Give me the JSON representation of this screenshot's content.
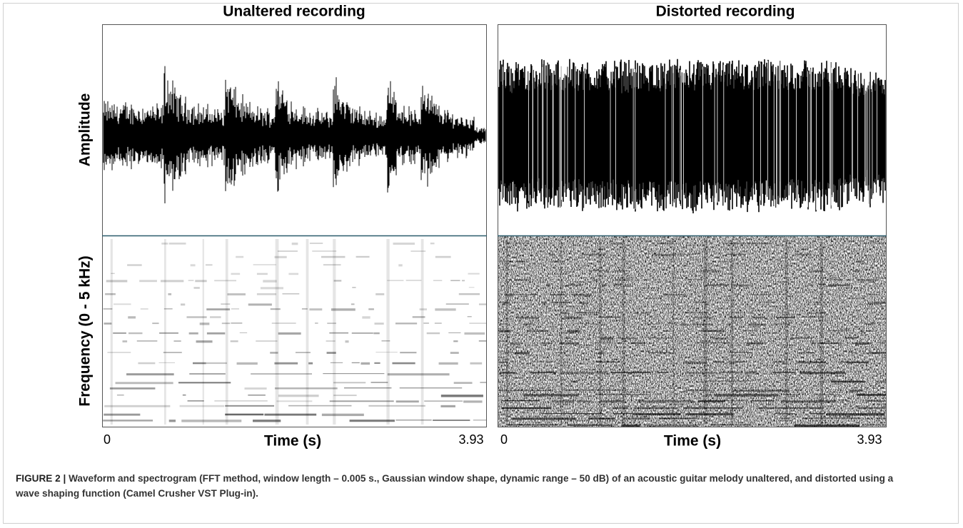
{
  "figure": {
    "panels": [
      {
        "title": "Unaltered recording",
        "x_start": "0",
        "x_label": "Time (s)",
        "x_end": "3.93"
      },
      {
        "title": "Distorted recording",
        "x_start": "0",
        "x_label": "Time (s)",
        "x_end": "3.93"
      }
    ],
    "y_axis": {
      "amplitude": "Amplitude",
      "frequency": "Frequency (0 - 5 kHz)"
    }
  },
  "caption": {
    "label": "FIGURE 2 |",
    "text": "Waveform and spectrogram (FFT method, window length – 0.005 s., Gaussian window shape, dynamic range – 50 dB) of an acoustic guitar melody unaltered, and distorted using a wave shaping function (Camel Crusher VST Plug-in)."
  }
}
